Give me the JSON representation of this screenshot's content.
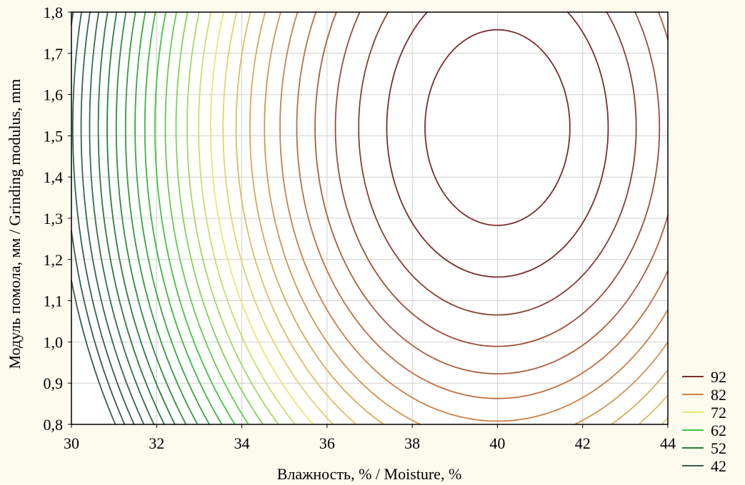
{
  "chart_data": {
    "type": "contour",
    "title": "",
    "xlabel": "Влажность, % / Moisture, %",
    "ylabel": "Модуль помола, мм / Grinding modulus, mm",
    "xlim": [
      30,
      44
    ],
    "ylim": [
      0.8,
      1.8
    ],
    "x_ticks": [
      "30",
      "32",
      "34",
      "36",
      "38",
      "40",
      "42",
      "44"
    ],
    "y_ticks": [
      "0,8",
      "0,9",
      "1,0",
      "1,1",
      "1,2",
      "1,3",
      "1,4",
      "1,5",
      "1,6",
      "1,7",
      "1,8"
    ],
    "grid": true,
    "surface": {
      "peak_moisture": 40.0,
      "peak_modulus": 1.52,
      "peak_value": 95.5,
      "moisture_scale": 4.3,
      "modulus_scale": 0.6,
      "min_value": 38
    },
    "contour_interval": 2,
    "legend_position": "right-bottom",
    "legend": [
      {
        "label": "92",
        "color": "#7a2d2d"
      },
      {
        "label": "82",
        "color": "#cc8044"
      },
      {
        "label": "72",
        "color": "#e8e870"
      },
      {
        "label": "62",
        "color": "#3ec63e"
      },
      {
        "label": "52",
        "color": "#2a7e3c"
      },
      {
        "label": "42",
        "color": "#3c5a4a"
      }
    ]
  }
}
